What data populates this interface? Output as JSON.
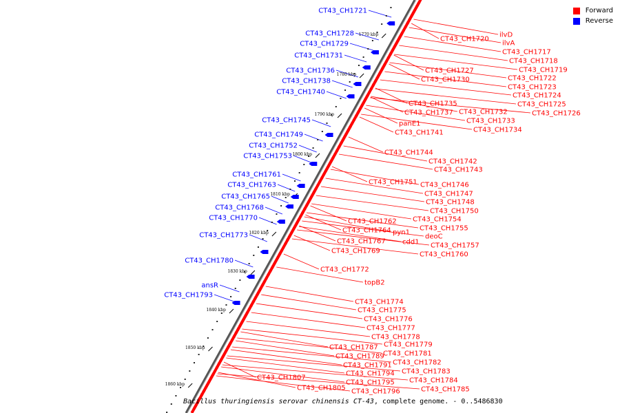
{
  "legend": {
    "forward": {
      "label": "Forward",
      "color": "#ff0000"
    },
    "reverse": {
      "label": "Reverse",
      "color": "#0000ff"
    }
  },
  "footer": {
    "organism": "Bacillus thuringiensis serovar chinensis CT-43",
    "rest": ", complete genome. - 0..5486830"
  },
  "axis": {
    "unit": "kbp",
    "ticks": [
      1770,
      1780,
      1790,
      1800,
      1810,
      1820,
      1830,
      1840,
      1850,
      1860
    ],
    "tick_labels": [
      "1770 kbp",
      "1780 kbp",
      "1790 kbp",
      "1800 kbp",
      "1810 kbp",
      "1820 kbp",
      "1830 kbp",
      "1840 kbp",
      "1850 kbp",
      "1860 kbp"
    ]
  },
  "reverse_labels": [
    "CT43_CH1721",
    "CT43_CH1728",
    "CT43_CH1729",
    "CT43_CH1731",
    "CT43_CH1736",
    "CT43_CH1738",
    "CT43_CH1740",
    "CT43_CH1745",
    "CT43_CH1749",
    "CT43_CH1752",
    "CT43_CH1753",
    "CT43_CH1761",
    "CT43_CH1763",
    "CT43_CH1765",
    "CT43_CH1768",
    "CT43_CH1770",
    "CT43_CH1773",
    "CT43_CH1780",
    "ansR",
    "CT43_CH1793"
  ],
  "forward_labels": [
    "ilvD",
    "ilvA",
    "CT43_CH1720",
    "CT43_CH1717",
    "CT43_CH1718",
    "CT43_CH1719",
    "CT43_CH1727",
    "CT43_CH1722",
    "CT43_CH1730",
    "CT43_CH1723",
    "CT43_CH1724",
    "CT43_CH1735",
    "CT43_CH1725",
    "CT43_CH1737",
    "CT43_CH1732",
    "CT43_CH1726",
    "CT43_CH1733",
    "panE1",
    "CT43_CH1734",
    "CT43_CH1741",
    "CT43_CH1744",
    "CT43_CH1742",
    "CT43_CH1743",
    "CT43_CH1751",
    "CT43_CH1746",
    "CT43_CH1747",
    "CT43_CH1748",
    "CT43_CH1750",
    "CT43_CH1754",
    "CT43_CH1762",
    "CT43_CH1755",
    "CT43_CH1764",
    "pyn1",
    "deoC",
    "CT43_CH1767",
    "cdd1",
    "CT43_CH1757",
    "CT43_CH1769",
    "CT43_CH1760",
    "CT43_CH1772",
    "topB2",
    "CT43_CH1774",
    "CT43_CH1775",
    "CT43_CH1776",
    "CT43_CH1777",
    "CT43_CH1778",
    "CT43_CH1779",
    "CT43_CH1787",
    "CT43_CH1781",
    "CT43_CH1789",
    "CT43_CH1782",
    "CT43_CH1791",
    "CT43_CH1783",
    "CT43_CH1794",
    "CT43_CH1784",
    "CT43_CH1807",
    "CT43_CH1795",
    "CT43_CH1805",
    "CT43_CH1796",
    "CT43_CH1785"
  ]
}
